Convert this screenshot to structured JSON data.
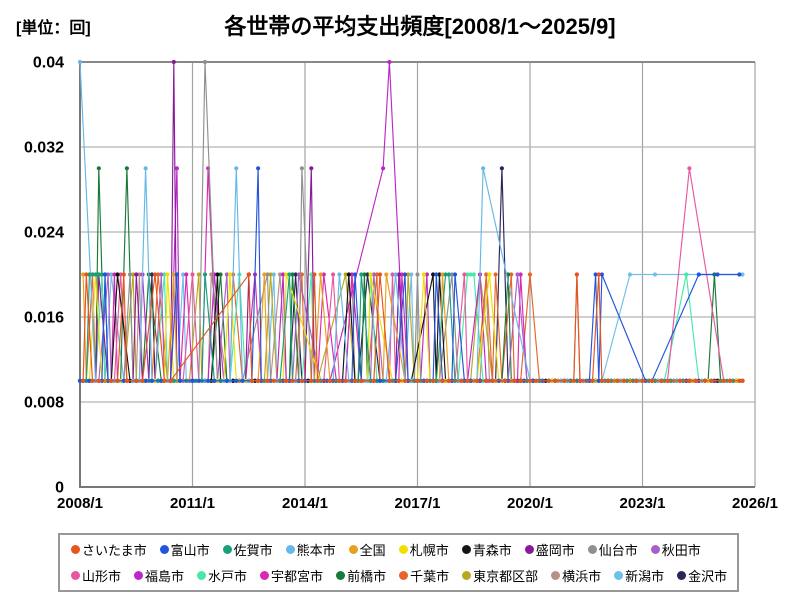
{
  "title": "各世帯の平均支出頻度[2008/1～2025/9]",
  "unit_label": "[単位：回]",
  "legend": {
    "items_per_row": 10
  },
  "chart_data": {
    "type": "line",
    "title": "各世帯の平均支出頻度[2008/1～2025/9]",
    "ylabel": "[単位：回]",
    "x_axis": {
      "tick_labels": [
        "2008/1",
        "2011/1",
        "2014/1",
        "2017/1",
        "2020/1",
        "2023/1",
        "2026/1"
      ],
      "tick_months": [
        0,
        36,
        72,
        108,
        144,
        180,
        216
      ],
      "total_months": 216,
      "data_months": 213,
      "start": "2008/1",
      "end": "2025/9"
    },
    "y_axis": {
      "ticks": [
        0,
        0.008,
        0.016,
        0.024,
        0.032,
        0.04
      ],
      "tick_labels": [
        "0",
        "0.008",
        "0.016",
        "0.024",
        "0.032",
        "0.04"
      ],
      "range": [
        0,
        0.04
      ],
      "grid": true
    },
    "baseline_value": 0.01,
    "series": [
      {
        "id": "saitama",
        "name": "さいたま市",
        "color": "#e6551e",
        "offset": 1,
        "gaps": [
          3,
          2,
          4,
          2,
          3,
          3,
          2,
          4,
          3,
          2
        ],
        "spikes": {
          "2": 0.02,
          "14": 0.02,
          "24": 0.02,
          "54": 0.02,
          "75": 0.02,
          "96": 0.02,
          "159": 0.02,
          "166": 0.02,
          "212": 0.01
        },
        "skips": [
          [
            31,
            53
          ]
        ]
      },
      {
        "id": "toyama",
        "name": "富山市",
        "color": "#2255dd",
        "offset": 0,
        "gaps": [
          3,
          4,
          2,
          3,
          2,
          4,
          3,
          2,
          3,
          3
        ],
        "spikes": {
          "8": 0.02,
          "31": 0.02,
          "57": 0.03,
          "88": 0.02,
          "104": 0.02,
          "114": 0.02,
          "120": 0.02,
          "165": 0.02,
          "167": 0.02,
          "198": 0.02,
          "204": 0.02,
          "211": 0.02
        },
        "skips": [
          [
            154,
            160
          ],
          [
            168,
            180
          ],
          [
            184,
            197
          ],
          [
            199,
            203
          ],
          [
            205,
            210
          ],
          [
            212,
            212
          ]
        ]
      },
      {
        "id": "saga",
        "name": "佐賀市",
        "color": "#18a078",
        "offset": 0,
        "gaps": [
          2,
          3,
          2,
          2,
          3,
          2,
          4,
          2,
          2,
          3
        ],
        "spikes": {
          "3": 0.02,
          "4": 0.02,
          "5": 0.02,
          "6": 0.02,
          "7": 0.02,
          "8": 0.02,
          "40": 0.02,
          "67": 0.02,
          "90": 0.02,
          "117": 0.02,
          "118": 0.02
        },
        "skips": []
      },
      {
        "id": "kumamoto",
        "name": "熊本市",
        "color": "#66b8e8",
        "offset": 5,
        "gaps": [
          4,
          2,
          3,
          3,
          2,
          4,
          2,
          3,
          4,
          2
        ],
        "spikes": {
          "0": 0.04,
          "21": 0.03,
          "50": 0.03,
          "83": 0.02,
          "101": 0.02,
          "129": 0.03
        },
        "skips": [
          [
            1,
            4
          ],
          [
            130,
            143
          ]
        ]
      },
      {
        "id": "zenkoku",
        "name": "全国",
        "color": "#e8a020",
        "offset": 2,
        "gaps": [
          3,
          3,
          2,
          4,
          3,
          2,
          3,
          4,
          2,
          3
        ],
        "spikes": {
          "1": 0.02,
          "30": 0.02,
          "59": 0.02,
          "77": 0.02,
          "98": 0.02,
          "116": 0.02
        },
        "skips": [
          [
            99,
            103
          ]
        ]
      },
      {
        "id": "sapporo",
        "name": "札幌市",
        "color": "#f0e000",
        "offset": 3,
        "gaps": [
          4,
          3,
          3,
          2,
          4,
          3,
          2,
          3,
          3,
          4
        ],
        "spikes": {
          "5": 0.02,
          "28": 0.02,
          "48": 0.02,
          "66": 0.02,
          "93": 0.02,
          "110": 0.02,
          "131": 0.02
        },
        "skips": [
          [
            67,
            76
          ],
          [
            94,
            99
          ]
        ]
      },
      {
        "id": "aomori",
        "name": "青森市",
        "color": "#151515",
        "offset": 1,
        "gaps": [
          2,
          2,
          3,
          2,
          2,
          4,
          2,
          3,
          2,
          2
        ],
        "spikes": {
          "12": 0.02,
          "44": 0.02,
          "86": 0.02,
          "113": 0.02,
          "115": 0.02
        },
        "skips": [
          [
            108,
            112
          ]
        ]
      },
      {
        "id": "morioka",
        "name": "盛岡市",
        "color": "#8a1a9a",
        "offset": 2,
        "gaps": [
          3,
          4,
          3,
          2,
          3,
          3,
          4,
          2,
          3,
          2
        ],
        "spikes": {
          "6": 0.02,
          "18": 0.02,
          "30": 0.04,
          "54": 0.02,
          "74": 0.03,
          "102": 0.02
        },
        "skips": []
      },
      {
        "id": "sendai",
        "name": "仙台市",
        "color": "#909090",
        "offset": 4,
        "gaps": [
          4,
          2,
          4,
          3,
          2,
          3,
          3,
          4,
          2,
          3
        ],
        "spikes": {
          "16": 0.02,
          "40": 0.04,
          "60": 0.02,
          "71": 0.03,
          "108": 0.02,
          "119": 0.02,
          "159": 0.02
        },
        "skips": [
          [
            55,
            59
          ]
        ]
      },
      {
        "id": "akita",
        "name": "秋田市",
        "color": "#a860c8",
        "offset": 0,
        "gaps": [
          3,
          3,
          4,
          2,
          3,
          4,
          2,
          3,
          3,
          2
        ],
        "spikes": {
          "9": 0.02,
          "26": 0.02,
          "47": 0.02,
          "70": 0.02,
          "94": 0.02,
          "140": 0.02
        },
        "skips": [
          [
            71,
            74
          ]
        ]
      },
      {
        "id": "yamagata",
        "name": "山形市",
        "color": "#e8579e",
        "offset": 1,
        "gaps": [
          2,
          3,
          2,
          3,
          2,
          2,
          3,
          2,
          4,
          2
        ],
        "spikes": {
          "13": 0.02,
          "36": 0.02,
          "81": 0.02,
          "100": 0.02,
          "123": 0.02,
          "195": 0.03
        },
        "skips": [
          [
            189,
            194
          ],
          [
            196,
            203
          ]
        ]
      },
      {
        "id": "fukushima",
        "name": "福島市",
        "color": "#bc28c8",
        "offset": 0,
        "gaps": [
          3,
          2,
          3,
          4,
          2,
          3,
          2,
          3,
          3,
          4
        ],
        "spikes": {
          "20": 0.02,
          "31": 0.03,
          "43": 0.02,
          "65": 0.02,
          "97": 0.03,
          "99": 0.04,
          "111": 0.02,
          "128": 0.02
        },
        "skips": [
          [
            83,
            96
          ],
          [
            98,
            98
          ],
          [
            100,
            101
          ]
        ]
      },
      {
        "id": "mito",
        "name": "水戸市",
        "color": "#48e8a8",
        "offset": 2,
        "gaps": [
          3,
          3,
          2,
          3,
          4,
          2,
          3,
          2,
          4,
          3
        ],
        "spikes": {
          "7": 0.02,
          "27": 0.02,
          "51": 0.02,
          "74": 0.02,
          "93": 0.02,
          "124": 0.02,
          "125": 0.02,
          "126": 0.02,
          "194": 0.02
        },
        "skips": [
          [
            188,
            193
          ],
          [
            195,
            197
          ]
        ]
      },
      {
        "id": "utsunomiya",
        "name": "宇都宮市",
        "color": "#d828b4",
        "offset": 3,
        "gaps": [
          4,
          3,
          2,
          3,
          3,
          2,
          4,
          3,
          2,
          3
        ],
        "spikes": {
          "11": 0.02,
          "34": 0.02,
          "41": 0.03,
          "56": 0.02,
          "78": 0.02,
          "87": 0.02,
          "103": 0.02,
          "141": 0.02
        },
        "skips": []
      },
      {
        "id": "maebashi",
        "name": "前橋市",
        "color": "#187a38",
        "offset": 1,
        "gaps": [
          2,
          2,
          3,
          2,
          3,
          2,
          2,
          3,
          2,
          4
        ],
        "spikes": {
          "6": 0.03,
          "15": 0.03,
          "22": 0.02,
          "45": 0.02,
          "68": 0.02,
          "91": 0.02,
          "137": 0.02,
          "203": 0.02
        },
        "skips": []
      },
      {
        "id": "chiba",
        "name": "千葉市",
        "color": "#e86428",
        "offset": 2,
        "gaps": [
          3,
          4,
          2,
          3,
          2,
          3,
          4,
          2,
          3,
          3
        ],
        "spikes": {
          "4": 0.02,
          "25": 0.02,
          "49": 0.02,
          "71": 0.02,
          "95": 0.02,
          "130": 0.02,
          "133": 0.02,
          "138": 0.02,
          "144": 0.02,
          "212": 0.01
        },
        "skips": []
      },
      {
        "id": "tokyo",
        "name": "東京都区部",
        "color": "#b8a820",
        "offset": 4,
        "gaps": [
          4,
          3,
          3,
          4,
          2,
          3,
          3,
          2,
          4,
          3
        ],
        "spikes": {
          "17": 0.02,
          "38": 0.02,
          "61": 0.02,
          "85": 0.02,
          "105": 0.02,
          "128": 0.02
        },
        "skips": [
          [
            80,
            84
          ]
        ]
      },
      {
        "id": "yokohama",
        "name": "横浜市",
        "color": "#b89088",
        "offset": 3,
        "gaps": [
          3,
          2,
          4,
          3,
          3,
          2,
          3,
          4,
          3,
          2
        ],
        "spikes": {
          "19": 0.02,
          "42": 0.02,
          "64": 0.02,
          "87": 0.02,
          "130": 0.02
        },
        "skips": [
          [
            43,
            46
          ]
        ]
      },
      {
        "id": "niigata",
        "name": "新潟市",
        "color": "#70c0e8",
        "offset": 2,
        "gaps": [
          3,
          3,
          2,
          4,
          3,
          3,
          2,
          3,
          2,
          4
        ],
        "spikes": {
          "10": 0.02,
          "33": 0.02,
          "62": 0.02,
          "106": 0.02,
          "176": 0.02,
          "184": 0.02,
          "212": 0.02
        },
        "skips": [
          [
            168,
            175
          ],
          [
            177,
            183
          ],
          [
            185,
            196
          ],
          [
            198,
            211
          ]
        ]
      },
      {
        "id": "kanazawa",
        "name": "金沢市",
        "color": "#282858",
        "offset": 5,
        "gaps": [
          4,
          4,
          2,
          3,
          4,
          2,
          3,
          3,
          4,
          2
        ],
        "spikes": {
          "23": 0.02,
          "69": 0.02,
          "92": 0.02,
          "135": 0.03
        },
        "skips": []
      }
    ]
  }
}
